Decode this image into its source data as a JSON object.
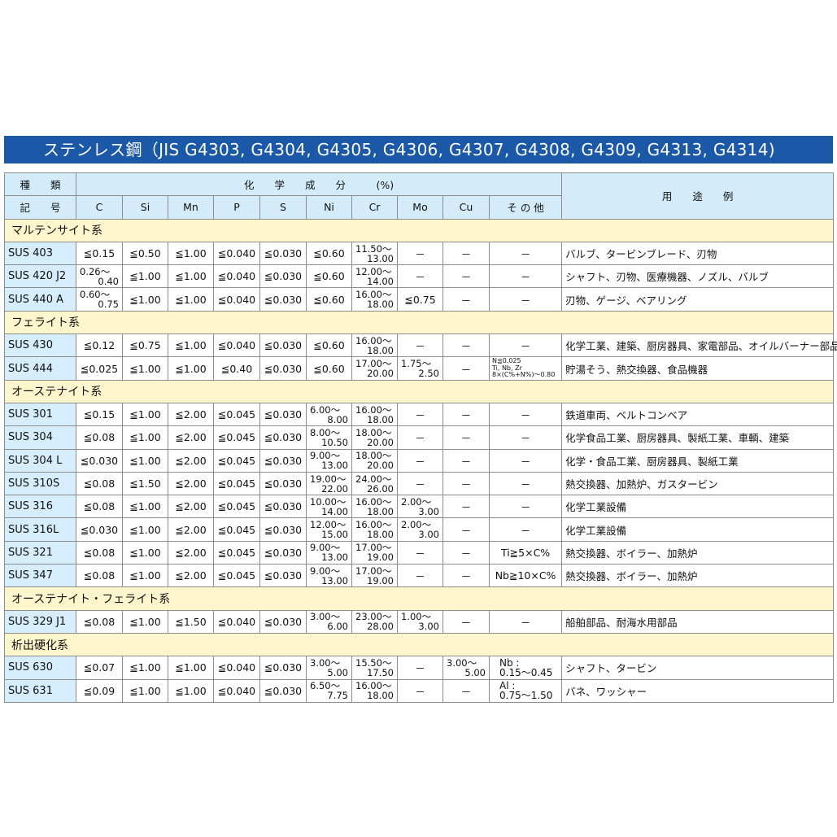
{
  "title": "ステンレス鋼（JIS G4303, G4304, G4305, G4306, G4307, G4308, G4309, G4313, G4314)",
  "header": {
    "type_label_1": "種　　類",
    "type_label_2": "記　　号",
    "composition_label": "化　　学　　成　　分　　　(%)",
    "usage_label": "用　　途　　例",
    "columns": [
      "C",
      "Si",
      "Mn",
      "P",
      "S",
      "Ni",
      "Cr",
      "Mo",
      "Cu",
      "そ の 他"
    ]
  },
  "colors": {
    "title_bar": "#1b58a8",
    "header_bg": "#d4ebf9",
    "category_bg": "#fdf6cd",
    "name_bg": "#d6edfb"
  },
  "groups": [
    {
      "category": "マルテンサイト系",
      "rows": [
        {
          "name": "SUS 403",
          "values": [
            "≦0.15",
            "≦0.50",
            "≦1.00",
            "≦0.040",
            "≦0.030",
            "≦0.60",
            [
              "11.50～",
              "13.00"
            ],
            "－",
            "－",
            "－"
          ],
          "usage": "バルブ、タービンブレード、刃物"
        },
        {
          "name": "SUS 420 J2",
          "values": [
            [
              "0.26～",
              "0.40"
            ],
            "≦1.00",
            "≦1.00",
            "≦0.040",
            "≦0.030",
            "≦0.60",
            [
              "12.00～",
              "14.00"
            ],
            "－",
            "－",
            "－"
          ],
          "usage": "シャフト、刃物、医療機器、ノズル、バルブ"
        },
        {
          "name": "SUS 440 A",
          "values": [
            [
              "0.60～",
              "0.75"
            ],
            "≦1.00",
            "≦1.00",
            "≦0.040",
            "≦0.030",
            "≦0.60",
            [
              "16.00～",
              "18.00"
            ],
            "≦0.75",
            "－",
            "－"
          ],
          "usage": "刃物、ゲージ、ベアリング"
        }
      ]
    },
    {
      "category": "フェライト系",
      "rows": [
        {
          "name": "SUS 430",
          "values": [
            "≦0.12",
            "≦0.75",
            "≦1.00",
            "≦0.040",
            "≦0.030",
            "≦0.60",
            [
              "16.00～",
              "18.00"
            ],
            "－",
            "－",
            "－"
          ],
          "usage": "化学工業、建築、厨房器具、家電部品、オイルバーナー部品"
        },
        {
          "name": "SUS 444",
          "values": [
            "≦0.025",
            "≦1.00",
            "≦1.00",
            "≦0.40",
            "≦0.030",
            "≦0.60",
            [
              "17.00～",
              "20.00"
            ],
            [
              "1.75～",
              "2.50"
            ],
            "－",
            {
              "tiny": [
                "N≦0.025",
                "Ti, Nb, Zr",
                "8×(C%+N%)～0.80"
              ]
            }
          ],
          "usage": "貯湯そう、熱交換器、食品機器"
        }
      ]
    },
    {
      "category": "オーステナイト系",
      "rows": [
        {
          "name": "SUS 301",
          "values": [
            "≦0.15",
            "≦1.00",
            "≦2.00",
            "≦0.045",
            "≦0.030",
            [
              "6.00～",
              "8.00"
            ],
            [
              "16.00～",
              "18.00"
            ],
            "－",
            "－",
            "－"
          ],
          "usage": "鉄道車両、ベルトコンベア"
        },
        {
          "name": "SUS 304",
          "values": [
            "≦0.08",
            "≦1.00",
            "≦2.00",
            "≦0.045",
            "≦0.030",
            [
              "8.00～",
              "10.50"
            ],
            [
              "18.00～",
              "20.00"
            ],
            "－",
            "－",
            "－"
          ],
          "usage": "化学食品工業、厨房器具、製紙工業、車輌、建築"
        },
        {
          "name": "SUS 304 L",
          "values": [
            "≦0.030",
            "≦1.00",
            "≦2.00",
            "≦0.045",
            "≦0.030",
            [
              "9.00～",
              "13.00"
            ],
            [
              "18.00～",
              "20.00"
            ],
            "－",
            "－",
            "－"
          ],
          "usage": "化学・食品工業、厨房器具、製紙工業"
        },
        {
          "name": "SUS 310S",
          "values": [
            "≦0.08",
            "≦1.50",
            "≦2.00",
            "≦0.045",
            "≦0.030",
            [
              "19.00～",
              "22.00"
            ],
            [
              "24.00～",
              "26.00"
            ],
            "－",
            "－",
            "－"
          ],
          "usage": "熱交換器、加熱炉、ガスタービン"
        },
        {
          "name": "SUS 316",
          "values": [
            "≦0.08",
            "≦1.00",
            "≦2.00",
            "≦0.045",
            "≦0.030",
            [
              "10.00～",
              "14.00"
            ],
            [
              "16.00～",
              "18.00"
            ],
            [
              "2.00～",
              "3.00"
            ],
            "－",
            "－"
          ],
          "usage": "化学工業設備"
        },
        {
          "name": "SUS 316L",
          "values": [
            "≦0.030",
            "≦1.00",
            "≦2.00",
            "≦0.045",
            "≦0.030",
            [
              "12.00～",
              "15.00"
            ],
            [
              "16.00～",
              "18.00"
            ],
            [
              "2.00～",
              "3.00"
            ],
            "－",
            "－"
          ],
          "usage": "化学工業設備"
        },
        {
          "name": "SUS 321",
          "values": [
            "≦0.08",
            "≦1.00",
            "≦2.00",
            "≦0.045",
            "≦0.030",
            [
              "9.00～",
              "13.00"
            ],
            [
              "17.00～",
              "19.00"
            ],
            "－",
            "－",
            "Ti≧5×C%"
          ],
          "usage": "熱交換器、ボイラー、加熱炉"
        },
        {
          "name": "SUS 347",
          "values": [
            "≦0.08",
            "≦1.00",
            "≦2.00",
            "≦0.045",
            "≦0.030",
            [
              "9.00～",
              "13.00"
            ],
            [
              "17.00～",
              "19.00"
            ],
            "－",
            "－",
            "Nb≧10×C%"
          ],
          "usage": "熱交換器、ボイラー、加熱炉"
        }
      ]
    },
    {
      "category": "オーステナイト・フェライト系",
      "rows": [
        {
          "name": "SUS 329 J1",
          "values": [
            "≦0.08",
            "≦1.00",
            "≦1.50",
            "≦0.040",
            "≦0.030",
            [
              "3.00～",
              "6.00"
            ],
            [
              "23.00～",
              "28.00"
            ],
            [
              "1.00～",
              "3.00"
            ],
            "－",
            "－"
          ],
          "usage": "船舶部品、耐海水用部品"
        }
      ]
    },
    {
      "category": "析出硬化系",
      "rows": [
        {
          "name": "SUS 630",
          "values": [
            "≦0.07",
            "≦1.00",
            "≦1.00",
            "≦0.040",
            "≦0.030",
            [
              "3.00～",
              "5.00"
            ],
            [
              "15.50～",
              "17.50"
            ],
            "－",
            [
              "3.00～",
              "5.00"
            ],
            {
              "two": [
                "Nb :",
                "0.15～0.45"
              ]
            }
          ],
          "usage": "シャフト、タービン"
        },
        {
          "name": "SUS 631",
          "values": [
            "≦0.09",
            "≦1.00",
            "≦1.00",
            "≦0.040",
            "≦0.030",
            [
              "6.50～",
              "7.75"
            ],
            [
              "16.00～",
              "18.00"
            ],
            "－",
            "－",
            {
              "two": [
                "Al :",
                "0.75～1.50"
              ]
            }
          ],
          "usage": "バネ、ワッシャー"
        }
      ]
    }
  ]
}
